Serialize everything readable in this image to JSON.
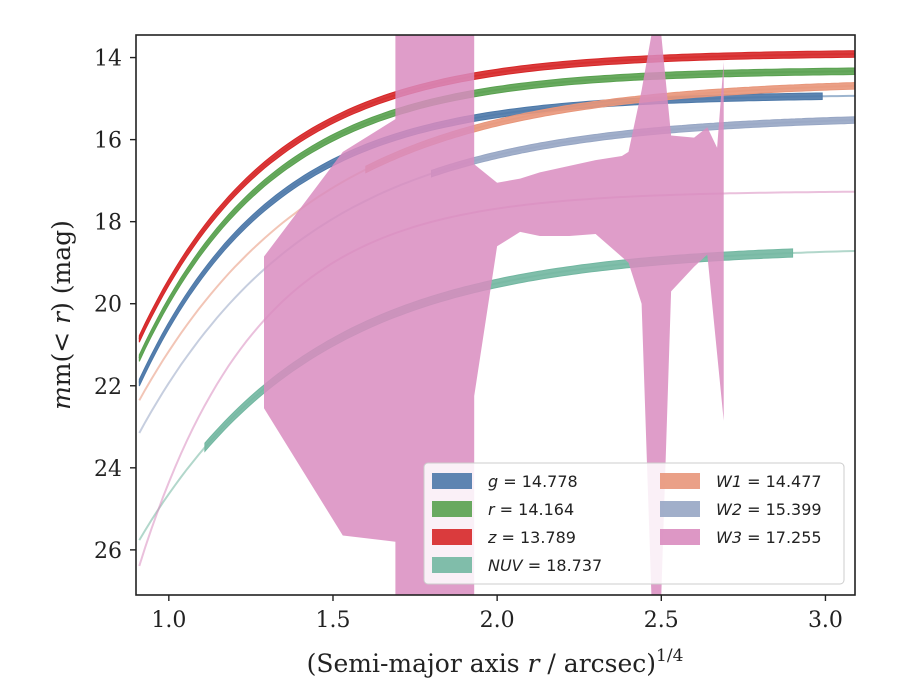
{
  "chart_data": {
    "type": "line",
    "title": "",
    "xlabel": {
      "main": "(Semi-major axis ",
      "var": "r",
      "rest": " / arcsec)",
      "sup": "1/4"
    },
    "ylabel": {
      "pre": "m(< ",
      "var": "r",
      "post": ") (mag)"
    },
    "xlim": [
      0.9,
      3.09
    ],
    "ylim": [
      27.1,
      13.45
    ],
    "y_inverted": true,
    "grid": false,
    "legend_placement": "lower right",
    "xticks": [
      {
        "v": 1.0,
        "label": "1.0"
      },
      {
        "v": 1.5,
        "label": "1.5"
      },
      {
        "v": 2.0,
        "label": "2.0"
      },
      {
        "v": 2.5,
        "label": "2.5"
      },
      {
        "v": 3.0,
        "label": "3.0"
      }
    ],
    "yticks": [
      {
        "v": 14,
        "label": "14"
      },
      {
        "v": 16,
        "label": "16"
      },
      {
        "v": 18,
        "label": "18"
      },
      {
        "v": 20,
        "label": "20"
      },
      {
        "v": 22,
        "label": "22"
      },
      {
        "v": 24,
        "label": "24"
      },
      {
        "v": 26,
        "label": "26"
      }
    ],
    "series": [
      {
        "band": "g",
        "name_var": "g",
        "name_val": "= 14.778",
        "color": "#4C78A8",
        "model": {
          "m_tot": 14.9,
          "A": 7.2,
          "k": 2.45,
          "x0": 0.91,
          "x1": 3.09
        },
        "band_width": 0.08,
        "data_x_range": [
          0.91,
          2.99
        ]
      },
      {
        "band": "r",
        "name_var": "r",
        "name_val": "= 14.164",
        "color": "#59A14F",
        "model": {
          "m_tot": 14.3,
          "A": 7.2,
          "k": 2.45,
          "x0": 0.91,
          "x1": 3.09
        },
        "band_width": 0.08,
        "data_x_range": [
          0.91,
          3.09
        ]
      },
      {
        "band": "z",
        "name_var": "z",
        "name_val": "= 13.789",
        "color": "#D62728",
        "model": {
          "m_tot": 13.88,
          "A": 7.15,
          "k": 2.45,
          "x0": 0.91,
          "x1": 3.09
        },
        "band_width": 0.08,
        "data_x_range": [
          0.91,
          3.09
        ]
      },
      {
        "band": "NUV",
        "name_var": "NUV",
        "name_val": "= 18.737",
        "color": "#72B7A1",
        "model": {
          "m_tot": 18.6,
          "A": 7.3,
          "k": 1.9,
          "x0": 0.91,
          "x1": 3.09
        },
        "band_width": 0.1,
        "data_x_range": [
          1.11,
          2.9
        ]
      },
      {
        "band": "W1",
        "name_var": "W1",
        "name_val": "= 14.477",
        "color": "#E8967A",
        "model": {
          "m_tot": 14.55,
          "A": 7.95,
          "k": 1.85,
          "x0": 0.91,
          "x1": 3.09
        },
        "band_width": 0.08,
        "data_x_range": [
          1.6,
          3.09
        ]
      },
      {
        "band": "W2",
        "name_var": "W2",
        "name_val": "= 15.399",
        "color": "#97A6C4",
        "model": {
          "m_tot": 15.4,
          "A": 7.9,
          "k": 1.9,
          "x0": 0.91,
          "x1": 3.09
        },
        "band_width": 0.08,
        "data_x_range": [
          1.8,
          3.09
        ]
      },
      {
        "band": "W3",
        "name_var": "W3",
        "name_val": "= 17.255",
        "color": "#D98CBF",
        "model": {
          "m_tot": 17.25,
          "A": 9.4,
          "k": 2.8,
          "x0": 0.91,
          "x1": 3.09
        },
        "band_width": 0.04,
        "data_x_range": [
          1.29,
          2.69
        ],
        "data_upper": [
          [
            1.29,
            18.85
          ],
          [
            1.53,
            16.3
          ],
          [
            1.69,
            15.5
          ],
          [
            1.69,
            13.45
          ],
          [
            1.93,
            13.45
          ],
          [
            1.93,
            16.6
          ],
          [
            2.0,
            17.05
          ],
          [
            2.07,
            16.95
          ],
          [
            2.13,
            16.8
          ],
          [
            2.3,
            16.5
          ],
          [
            2.38,
            16.4
          ],
          [
            2.4,
            16.3
          ],
          [
            2.44,
            14.8
          ],
          [
            2.47,
            13.45
          ],
          [
            2.5,
            13.45
          ],
          [
            2.53,
            15.9
          ],
          [
            2.6,
            15.95
          ],
          [
            2.64,
            15.7
          ],
          [
            2.67,
            16.2
          ],
          [
            2.69,
            14.1
          ]
        ],
        "data_lower": [
          [
            2.69,
            14.1
          ],
          [
            2.69,
            22.85
          ],
          [
            2.64,
            18.8
          ],
          [
            2.6,
            19.1
          ],
          [
            2.53,
            19.7
          ],
          [
            2.5,
            27.1
          ],
          [
            2.47,
            27.1
          ],
          [
            2.44,
            20.0
          ],
          [
            2.4,
            19.0
          ],
          [
            2.3,
            18.3
          ],
          [
            2.22,
            18.35
          ],
          [
            2.13,
            18.35
          ],
          [
            2.07,
            18.25
          ],
          [
            2.0,
            18.6
          ],
          [
            1.93,
            22.25
          ],
          [
            1.93,
            27.1
          ],
          [
            1.69,
            27.1
          ],
          [
            1.69,
            25.8
          ],
          [
            1.53,
            25.65
          ],
          [
            1.29,
            22.55
          ]
        ]
      }
    ],
    "legend_columns": [
      [
        "g",
        "r",
        "z",
        "NUV"
      ],
      [
        "W1",
        "W2",
        "W3"
      ]
    ]
  }
}
